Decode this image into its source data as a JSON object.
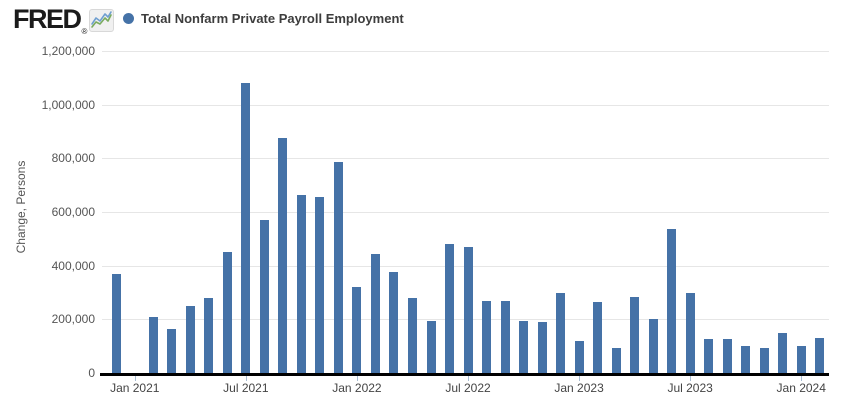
{
  "header": {
    "logo": {
      "text": "FRED",
      "registered_mark": "®"
    },
    "legend": {
      "marker": "circle",
      "marker_color": "#4572a7",
      "label": "Total Nonfarm Private Payroll Employment"
    }
  },
  "chart_data": {
    "type": "bar",
    "title": "Total Nonfarm Private Payroll Employment",
    "xlabel": "",
    "ylabel": "Change, Persons",
    "ylim": [
      0,
      1200000
    ],
    "grid": "horizontal",
    "legend_position": "top-left",
    "bar_color": "#4572a7",
    "months": [
      "Dec 2020",
      "Jan 2021",
      "Feb 2021",
      "Mar 2021",
      "Apr 2021",
      "May 2021",
      "Jun 2021",
      "Jul 2021",
      "Aug 2021",
      "Sep 2021",
      "Oct 2021",
      "Nov 2021",
      "Dec 2021",
      "Jan 2022",
      "Feb 2022",
      "Mar 2022",
      "Apr 2022",
      "May 2022",
      "Jun 2022",
      "Jul 2022",
      "Aug 2022",
      "Sep 2022",
      "Oct 2022",
      "Nov 2022",
      "Dec 2022",
      "Jan 2023",
      "Feb 2023",
      "Mar 2023",
      "Apr 2023",
      "May 2023",
      "Jun 2023",
      "Jul 2023",
      "Aug 2023",
      "Sep 2023",
      "Oct 2023",
      "Nov 2023",
      "Dec 2023",
      "Jan 2024",
      "Feb 2024"
    ],
    "values": [
      370000,
      0,
      210000,
      165000,
      250000,
      280000,
      450000,
      1080000,
      570000,
      875000,
      665000,
      655000,
      785000,
      320000,
      445000,
      375000,
      280000,
      195000,
      480000,
      470000,
      270000,
      270000,
      195000,
      190000,
      300000,
      120000,
      265000,
      95000,
      285000,
      200000,
      535000,
      300000,
      125000,
      125000,
      100000,
      95000,
      150000,
      100000,
      130000
    ],
    "y_ticks": [
      {
        "value": 0,
        "label": "0"
      },
      {
        "value": 200000,
        "label": "200,000"
      },
      {
        "value": 400000,
        "label": "400,000"
      },
      {
        "value": 600000,
        "label": "600,000"
      },
      {
        "value": 800000,
        "label": "800,000"
      },
      {
        "value": 1000000,
        "label": "1,000,000"
      },
      {
        "value": 1200000,
        "label": "1,200,000"
      }
    ],
    "x_ticks": [
      {
        "index": 1,
        "label": "Jan 2021"
      },
      {
        "index": 7,
        "label": "Jul 2021"
      },
      {
        "index": 13,
        "label": "Jan 2022"
      },
      {
        "index": 19,
        "label": "Jul 2022"
      },
      {
        "index": 25,
        "label": "Jan 2023"
      },
      {
        "index": 31,
        "label": "Jul 2023"
      },
      {
        "index": 37,
        "label": "Jan 2024"
      }
    ]
  },
  "colors": {
    "background": "#ffffff",
    "bar": "#4572a7",
    "axis_line": "#000000",
    "gridline": "#e6e6e6",
    "tick_mark": "#a8bdd3",
    "x_label_text": "#444444",
    "y_label_text": "#555555",
    "legend_text": "#3d3d3d",
    "logo_text": "#1b1b1b",
    "icon_bg": "#f0f0f0",
    "icon_line_blue": "#6f9fd0",
    "icon_line_green": "#7aab5e"
  }
}
